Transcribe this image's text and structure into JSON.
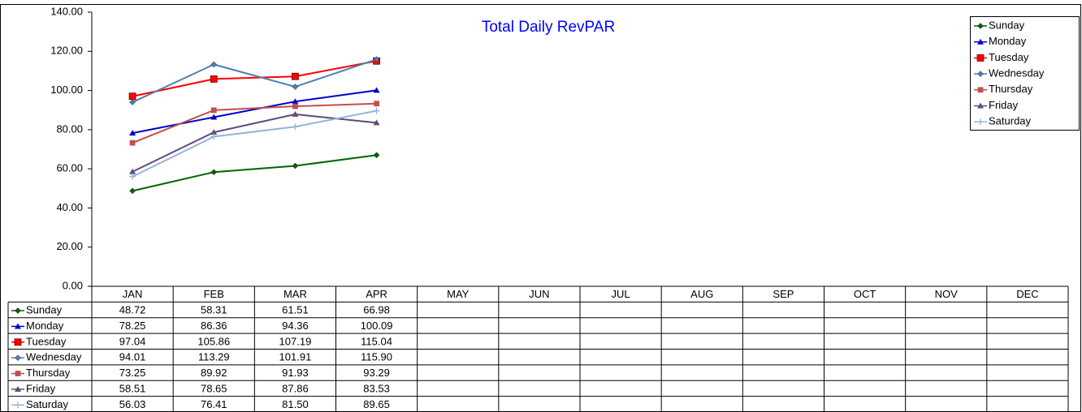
{
  "chart_data": {
    "type": "line",
    "title": "Total Daily RevPAR",
    "categories": [
      "JAN",
      "FEB",
      "MAR",
      "APR",
      "MAY",
      "JUN",
      "JUL",
      "AUG",
      "SEP",
      "OCT",
      "NOV",
      "DEC"
    ],
    "ylim": [
      0,
      140
    ],
    "yticks": [
      {
        "value": 0,
        "label": "0.00"
      },
      {
        "value": 20,
        "label": "20.00"
      },
      {
        "value": 40,
        "label": "40.00"
      },
      {
        "value": 60,
        "label": "60.00"
      },
      {
        "value": 80,
        "label": "80.00"
      },
      {
        "value": 100,
        "label": "100.00"
      },
      {
        "value": 120,
        "label": "120.00"
      },
      {
        "value": 140,
        "label": "140.00"
      }
    ],
    "grid": false,
    "legend": "top-right",
    "series": [
      {
        "name": "Sunday",
        "color": "#006400",
        "marker": "diamond",
        "values": [
          48.72,
          58.31,
          61.51,
          66.98,
          null,
          null,
          null,
          null,
          null,
          null,
          null,
          null
        ],
        "value_labels": [
          "48.72",
          "58.31",
          "61.51",
          "66.98",
          null,
          null,
          null,
          null,
          null,
          null,
          null,
          null
        ]
      },
      {
        "name": "Monday",
        "color": "#0000cc",
        "marker": "triangle",
        "values": [
          78.25,
          86.36,
          94.36,
          100.09,
          null,
          null,
          null,
          null,
          null,
          null,
          null,
          null
        ],
        "value_labels": [
          "78.25",
          "86.36",
          "94.36",
          "100.09",
          null,
          null,
          null,
          null,
          null,
          null,
          null,
          null
        ]
      },
      {
        "name": "Tuesday",
        "color": "#ff0000",
        "marker": "square",
        "values": [
          97.04,
          105.86,
          107.19,
          115.04,
          null,
          null,
          null,
          null,
          null,
          null,
          null,
          null
        ],
        "value_labels": [
          "97.04",
          "105.86",
          "107.19",
          "115.04",
          null,
          null,
          null,
          null,
          null,
          null,
          null,
          null
        ]
      },
      {
        "name": "Wednesday",
        "color": "#4f7fb5",
        "marker": "diamond",
        "values": [
          94.01,
          113.29,
          101.91,
          115.9,
          null,
          null,
          null,
          null,
          null,
          null,
          null,
          null
        ],
        "value_labels": [
          "94.01",
          "113.29",
          "101.91",
          "115.90",
          null,
          null,
          null,
          null,
          null,
          null,
          null,
          null
        ]
      },
      {
        "name": "Thursday",
        "color": "#c0504d",
        "marker": "square",
        "values": [
          73.25,
          89.92,
          91.93,
          93.29,
          null,
          null,
          null,
          null,
          null,
          null,
          null,
          null
        ],
        "value_labels": [
          "73.25",
          "89.92",
          "91.93",
          "93.29",
          null,
          null,
          null,
          null,
          null,
          null,
          null,
          null
        ]
      },
      {
        "name": "Friday",
        "color": "#604a7b",
        "marker": "triangle",
        "values": [
          58.51,
          78.65,
          87.86,
          83.53,
          null,
          null,
          null,
          null,
          null,
          null,
          null,
          null
        ],
        "value_labels": [
          "58.51",
          "78.65",
          "87.86",
          "83.53",
          null,
          null,
          null,
          null,
          null,
          null,
          null,
          null
        ]
      },
      {
        "name": "Saturday",
        "color": "#95b3d7",
        "marker": "plus",
        "values": [
          56.03,
          76.41,
          81.5,
          89.65,
          null,
          null,
          null,
          null,
          null,
          null,
          null,
          null
        ],
        "value_labels": [
          "56.03",
          "76.41",
          "81.50",
          "89.65",
          null,
          null,
          null,
          null,
          null,
          null,
          null,
          null
        ]
      }
    ]
  }
}
